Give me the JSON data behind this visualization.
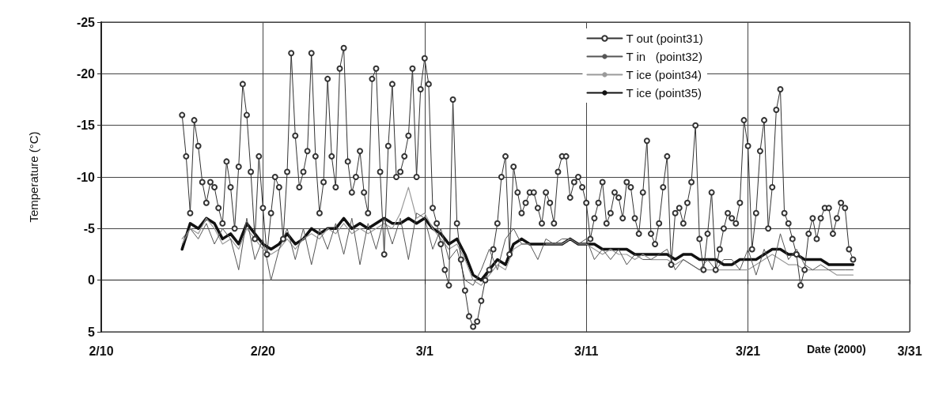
{
  "chart_data": {
    "type": "line",
    "xlabel": "Date (2000)",
    "ylabel": "Temperature (°C)",
    "xlim": [
      "2000-02-10",
      "2000-03-31"
    ],
    "xticks": [
      {
        "value": "2000-02-10",
        "label": "2/10"
      },
      {
        "value": "2000-02-20",
        "label": "2/20"
      },
      {
        "value": "2000-03-01",
        "label": "3/1"
      },
      {
        "value": "2000-03-11",
        "label": "3/11"
      },
      {
        "value": "2000-03-21",
        "label": "3/21"
      },
      {
        "value": "2000-03-31",
        "label": "3/31"
      }
    ],
    "ylim": [
      5,
      -25
    ],
    "yticks": [
      5,
      0,
      -5,
      -10,
      -15,
      -20,
      -25
    ],
    "grid": true,
    "legend": "top right",
    "line_style": "solid",
    "x": [
      "2000-02-15T00:00",
      "2000-02-15T12:00",
      "2000-02-16T00:00",
      "2000-02-16T12:00",
      "2000-02-17T00:00",
      "2000-02-17T12:00",
      "2000-02-18T00:00",
      "2000-02-18T12:00",
      "2000-02-19T00:00",
      "2000-02-19T12:00",
      "2000-02-20T00:00",
      "2000-02-20T12:00",
      "2000-02-21T00:00",
      "2000-02-21T12:00",
      "2000-02-22T00:00",
      "2000-02-22T12:00",
      "2000-02-23T00:00",
      "2000-02-23T12:00",
      "2000-02-24T00:00",
      "2000-02-24T12:00",
      "2000-02-25T00:00",
      "2000-02-25T12:00",
      "2000-02-26T00:00",
      "2000-02-26T12:00",
      "2000-02-27T00:00",
      "2000-02-27T12:00",
      "2000-02-28T00:00",
      "2000-02-28T12:00",
      "2000-02-29T00:00",
      "2000-02-29T12:00",
      "2000-03-01T00:00",
      "2000-03-01T12:00",
      "2000-03-02T00:00",
      "2000-03-02T12:00",
      "2000-03-03T00:00",
      "2000-03-03T12:00",
      "2000-03-04T00:00",
      "2000-03-04T12:00",
      "2000-03-05T00:00",
      "2000-03-05T12:00",
      "2000-03-06T00:00",
      "2000-03-06T12:00",
      "2000-03-07T00:00",
      "2000-03-07T12:00",
      "2000-03-08T00:00",
      "2000-03-08T12:00",
      "2000-03-09T00:00",
      "2000-03-09T12:00",
      "2000-03-10T00:00",
      "2000-03-10T12:00",
      "2000-03-11T00:00",
      "2000-03-11T12:00",
      "2000-03-12T00:00",
      "2000-03-12T12:00",
      "2000-03-13T00:00",
      "2000-03-13T12:00",
      "2000-03-14T00:00",
      "2000-03-14T12:00",
      "2000-03-15T00:00",
      "2000-03-15T12:00",
      "2000-03-16T00:00",
      "2000-03-16T12:00",
      "2000-03-17T00:00",
      "2000-03-17T12:00",
      "2000-03-18T00:00",
      "2000-03-18T12:00",
      "2000-03-19T00:00",
      "2000-03-19T12:00",
      "2000-03-20T00:00",
      "2000-03-20T12:00",
      "2000-03-21T00:00",
      "2000-03-21T12:00",
      "2000-03-22T00:00",
      "2000-03-22T12:00",
      "2000-03-23T00:00",
      "2000-03-23T12:00",
      "2000-03-24T00:00",
      "2000-03-24T12:00",
      "2000-03-25T00:00",
      "2000-03-25T12:00",
      "2000-03-26T00:00",
      "2000-03-26T12:00",
      "2000-03-27T00:00",
      "2000-03-27T12:00"
    ],
    "series": [
      {
        "name": "T out (point31)",
        "color": "#333333",
        "marker": "circle",
        "x": [
          "2000-02-15T00:00",
          "2000-02-15T06:00",
          "2000-02-15T12:00",
          "2000-02-15T18:00",
          "2000-02-16T00:00",
          "2000-02-16T06:00",
          "2000-02-16T12:00",
          "2000-02-16T18:00",
          "2000-02-17T00:00",
          "2000-02-17T06:00",
          "2000-02-17T12:00",
          "2000-02-17T18:00",
          "2000-02-18T00:00",
          "2000-02-18T06:00",
          "2000-02-18T12:00",
          "2000-02-18T18:00",
          "2000-02-19T00:00",
          "2000-02-19T06:00",
          "2000-02-19T12:00",
          "2000-02-19T18:00",
          "2000-02-20T00:00",
          "2000-02-20T06:00",
          "2000-02-20T12:00",
          "2000-02-20T18:00",
          "2000-02-21T00:00",
          "2000-02-21T06:00",
          "2000-02-21T12:00",
          "2000-02-21T18:00",
          "2000-02-22T00:00",
          "2000-02-22T06:00",
          "2000-02-22T12:00",
          "2000-02-22T18:00",
          "2000-02-23T00:00",
          "2000-02-23T06:00",
          "2000-02-23T12:00",
          "2000-02-23T18:00",
          "2000-02-24T00:00",
          "2000-02-24T06:00",
          "2000-02-24T12:00",
          "2000-02-24T18:00",
          "2000-02-25T00:00",
          "2000-02-25T06:00",
          "2000-02-25T12:00",
          "2000-02-25T18:00",
          "2000-02-26T00:00",
          "2000-02-26T06:00",
          "2000-02-26T12:00",
          "2000-02-26T18:00",
          "2000-02-27T00:00",
          "2000-02-27T06:00",
          "2000-02-27T12:00",
          "2000-02-27T18:00",
          "2000-02-28T00:00",
          "2000-02-28T06:00",
          "2000-02-28T12:00",
          "2000-02-28T18:00",
          "2000-02-29T00:00",
          "2000-02-29T06:00",
          "2000-02-29T12:00",
          "2000-02-29T18:00",
          "2000-03-01T00:00",
          "2000-03-01T06:00",
          "2000-03-01T12:00",
          "2000-03-01T18:00",
          "2000-03-02T00:00",
          "2000-03-02T06:00",
          "2000-03-02T12:00",
          "2000-03-02T18:00",
          "2000-03-03T00:00",
          "2000-03-03T06:00",
          "2000-03-03T12:00",
          "2000-03-03T18:00",
          "2000-03-04T00:00",
          "2000-03-04T06:00",
          "2000-03-04T12:00",
          "2000-03-04T18:00",
          "2000-03-05T00:00",
          "2000-03-05T06:00",
          "2000-03-05T12:00",
          "2000-03-05T18:00",
          "2000-03-06T00:00",
          "2000-03-06T06:00",
          "2000-03-06T12:00",
          "2000-03-06T18:00",
          "2000-03-07T00:00",
          "2000-03-07T06:00",
          "2000-03-07T12:00",
          "2000-03-07T18:00",
          "2000-03-08T00:00",
          "2000-03-08T06:00",
          "2000-03-08T12:00",
          "2000-03-08T18:00",
          "2000-03-09T00:00",
          "2000-03-09T06:00",
          "2000-03-09T12:00",
          "2000-03-09T18:00",
          "2000-03-10T00:00",
          "2000-03-10T06:00",
          "2000-03-10T12:00",
          "2000-03-10T18:00",
          "2000-03-11T00:00",
          "2000-03-11T06:00",
          "2000-03-11T12:00",
          "2000-03-11T18:00",
          "2000-03-12T00:00",
          "2000-03-12T06:00",
          "2000-03-12T12:00",
          "2000-03-12T18:00",
          "2000-03-13T00:00",
          "2000-03-13T06:00",
          "2000-03-13T12:00",
          "2000-03-13T18:00",
          "2000-03-14T00:00",
          "2000-03-14T06:00",
          "2000-03-14T12:00",
          "2000-03-14T18:00",
          "2000-03-15T00:00",
          "2000-03-15T06:00",
          "2000-03-15T12:00",
          "2000-03-15T18:00",
          "2000-03-16T00:00",
          "2000-03-16T06:00",
          "2000-03-16T12:00",
          "2000-03-16T18:00",
          "2000-03-17T00:00",
          "2000-03-17T06:00",
          "2000-03-17T12:00",
          "2000-03-17T18:00",
          "2000-03-18T00:00",
          "2000-03-18T06:00",
          "2000-03-18T12:00",
          "2000-03-18T18:00",
          "2000-03-19T00:00",
          "2000-03-19T06:00",
          "2000-03-19T12:00",
          "2000-03-19T18:00",
          "2000-03-20T00:00",
          "2000-03-20T06:00",
          "2000-03-20T12:00",
          "2000-03-20T18:00",
          "2000-03-21T00:00",
          "2000-03-21T06:00",
          "2000-03-21T12:00",
          "2000-03-21T18:00",
          "2000-03-22T00:00",
          "2000-03-22T06:00",
          "2000-03-22T12:00",
          "2000-03-22T18:00",
          "2000-03-23T00:00",
          "2000-03-23T06:00",
          "2000-03-23T12:00",
          "2000-03-23T18:00",
          "2000-03-24T00:00",
          "2000-03-24T06:00",
          "2000-03-24T12:00",
          "2000-03-24T18:00",
          "2000-03-25T00:00",
          "2000-03-25T06:00",
          "2000-03-25T12:00",
          "2000-03-25T18:00",
          "2000-03-26T00:00",
          "2000-03-26T06:00",
          "2000-03-26T12:00",
          "2000-03-26T18:00",
          "2000-03-27T00:00",
          "2000-03-27T06:00",
          "2000-03-27T12:00"
        ],
        "values": [
          -16,
          -12,
          -6.5,
          -15.5,
          -13,
          -9.5,
          -7.5,
          -9.5,
          -9,
          -7,
          -5.5,
          -11.5,
          -9,
          -5,
          -11,
          -19,
          -16,
          -10.5,
          -4,
          -12,
          -7,
          -2.5,
          -6.5,
          -10,
          -9,
          -4,
          -10.5,
          -22,
          -14,
          -9,
          -10.5,
          -12.5,
          -22,
          -12,
          -6.5,
          -9.5,
          -19.5,
          -12,
          -9,
          -20.5,
          -22.5,
          -11.5,
          -8.5,
          -10,
          -12.5,
          -8.5,
          -6.5,
          -19.5,
          -20.5,
          -10.5,
          -2.5,
          -13,
          -19,
          -10,
          -10.5,
          -12,
          -14,
          -20.5,
          -10,
          -18.5,
          -21.5,
          -19,
          -7,
          -5.5,
          -3.5,
          -1,
          0.5,
          -17.5,
          -5.5,
          -2,
          1,
          3.5,
          4.5,
          4,
          2,
          0,
          -1,
          -3,
          -5.5,
          -10,
          -12,
          -2.5,
          -11,
          -8.5,
          -6.5,
          -7.5,
          -8.5,
          -8.5,
          -7,
          -5.5,
          -8.5,
          -7.5,
          -5.5,
          -10.5,
          -12,
          -12,
          -8,
          -9.5,
          -10,
          -9,
          -7.5,
          -4,
          -6,
          -7.5,
          -9.5,
          -5.5,
          -6.5,
          -8.5,
          -8,
          -6,
          -9.5,
          -9,
          -6,
          -4.5,
          -8.5,
          -13.5,
          -4.5,
          -3.5,
          -5.5,
          -9,
          -12,
          -1.5,
          -6.5,
          -7,
          -5.5,
          -7.5,
          -9.5,
          -15,
          -4,
          -1,
          -4.5,
          -8.5,
          -1,
          -3,
          -5,
          -6.5,
          -6,
          -5.5,
          -7.5,
          -15.5,
          -13,
          -3,
          -6.5,
          -12.5,
          -15.5,
          -5,
          -9,
          -16.5,
          -18.5,
          -6.5,
          -5.5,
          -4,
          -2.5,
          0.5,
          -1,
          -4.5,
          -6,
          -4,
          -6,
          -7,
          -7,
          -4.5,
          -6,
          -7.5,
          -7,
          -3,
          -2
        ]
      },
      {
        "name": "T in   (point32)",
        "color": "#555555",
        "marker": "none",
        "values": [
          -4,
          -5,
          -4,
          -5.5,
          -3.5,
          -5,
          -4,
          -1,
          -6,
          -2,
          -4,
          0,
          -3,
          -5,
          -2,
          -5,
          -1.5,
          -5,
          -3,
          -5.5,
          -2.5,
          -6,
          -1.5,
          -5.5,
          -3,
          -6,
          -3.5,
          -6,
          -2,
          -6.5,
          -6,
          -3,
          -5,
          -2,
          -3,
          0,
          0.5,
          -1,
          -3,
          -1,
          -4,
          -5,
          -3.5,
          -3.5,
          -2,
          -4,
          -3.5,
          -4,
          -4,
          -3.5,
          -4,
          -2,
          -3,
          -2,
          -3,
          -1.5,
          -2.5,
          -2,
          -2,
          -2.5,
          -3,
          -1,
          -2,
          -1.5,
          -1,
          -2,
          -1,
          -2,
          -2,
          -1,
          -3,
          -0.5,
          -3,
          -1,
          -4.5,
          -2,
          -3,
          -1.5,
          -1,
          -1.5,
          -1,
          -1,
          -1,
          -1
        ]
      },
      {
        "name": "T ice (point34)",
        "color": "#9a9a9a",
        "marker": "none",
        "values": [
          -3.5,
          -5,
          -4.5,
          -6,
          -5,
          -3.5,
          -4,
          -3,
          -5,
          -4,
          -3,
          -2.5,
          -3,
          -4,
          -3,
          -4,
          -4.5,
          -4,
          -5,
          -4.5,
          -5.5,
          -4.5,
          -5,
          -4.5,
          -5,
          -5.5,
          -5,
          -6.5,
          -9,
          -6,
          -6.5,
          -5,
          -4,
          -3,
          -3.5,
          -2,
          0,
          0.5,
          -0.5,
          -1.5,
          -1,
          -3,
          -3.5,
          -3.5,
          null,
          -3.5,
          -3.5,
          -3.5,
          -4,
          -3.5,
          -3.5,
          -3,
          -2.5,
          -3,
          -2.5,
          -2.5,
          -2,
          -2.5,
          -2,
          -2,
          -2,
          -1.5,
          -2,
          -1.5,
          -1,
          -1,
          -1,
          -1,
          -1,
          -1,
          -1,
          -1.5,
          -2,
          -2.5,
          -2,
          -1.5,
          -1.5,
          -1,
          -1,
          -1,
          -1,
          -0.5,
          -0.5,
          -0.5
        ]
      },
      {
        "name": "T ice (point35)",
        "color": "#111111",
        "marker": "none",
        "values": [
          -3,
          -5.5,
          -5,
          -6,
          -5.5,
          -4,
          -4.5,
          -3.5,
          -5.5,
          -4.5,
          -3.5,
          -3,
          -3.5,
          -4.5,
          -3.5,
          -4,
          -5,
          -4.5,
          -5,
          -5,
          -6,
          -5,
          -5.5,
          -5,
          -5.5,
          -6,
          -5.5,
          -5.5,
          -6,
          -5.5,
          -6,
          -5,
          -4.5,
          -3.5,
          -4,
          -2.5,
          -0.5,
          0,
          -1,
          -2,
          -1.5,
          -3.5,
          -4,
          -3.5,
          -3.5,
          -3.5,
          -3.5,
          -3.5,
          -4,
          -3.5,
          -3.5,
          -3.5,
          -3,
          -3,
          -3,
          -3,
          -2.5,
          -2.5,
          -2.5,
          -2.5,
          -2.5,
          -2,
          -2.5,
          -2.5,
          -2,
          -2,
          -2,
          -1.5,
          -1.5,
          -2,
          -2,
          -2,
          -2.5,
          -3,
          -3,
          -2.5,
          -2.5,
          -2,
          -2,
          -2,
          -1.5,
          -1.5,
          -1.5,
          -1.5
        ]
      }
    ]
  }
}
